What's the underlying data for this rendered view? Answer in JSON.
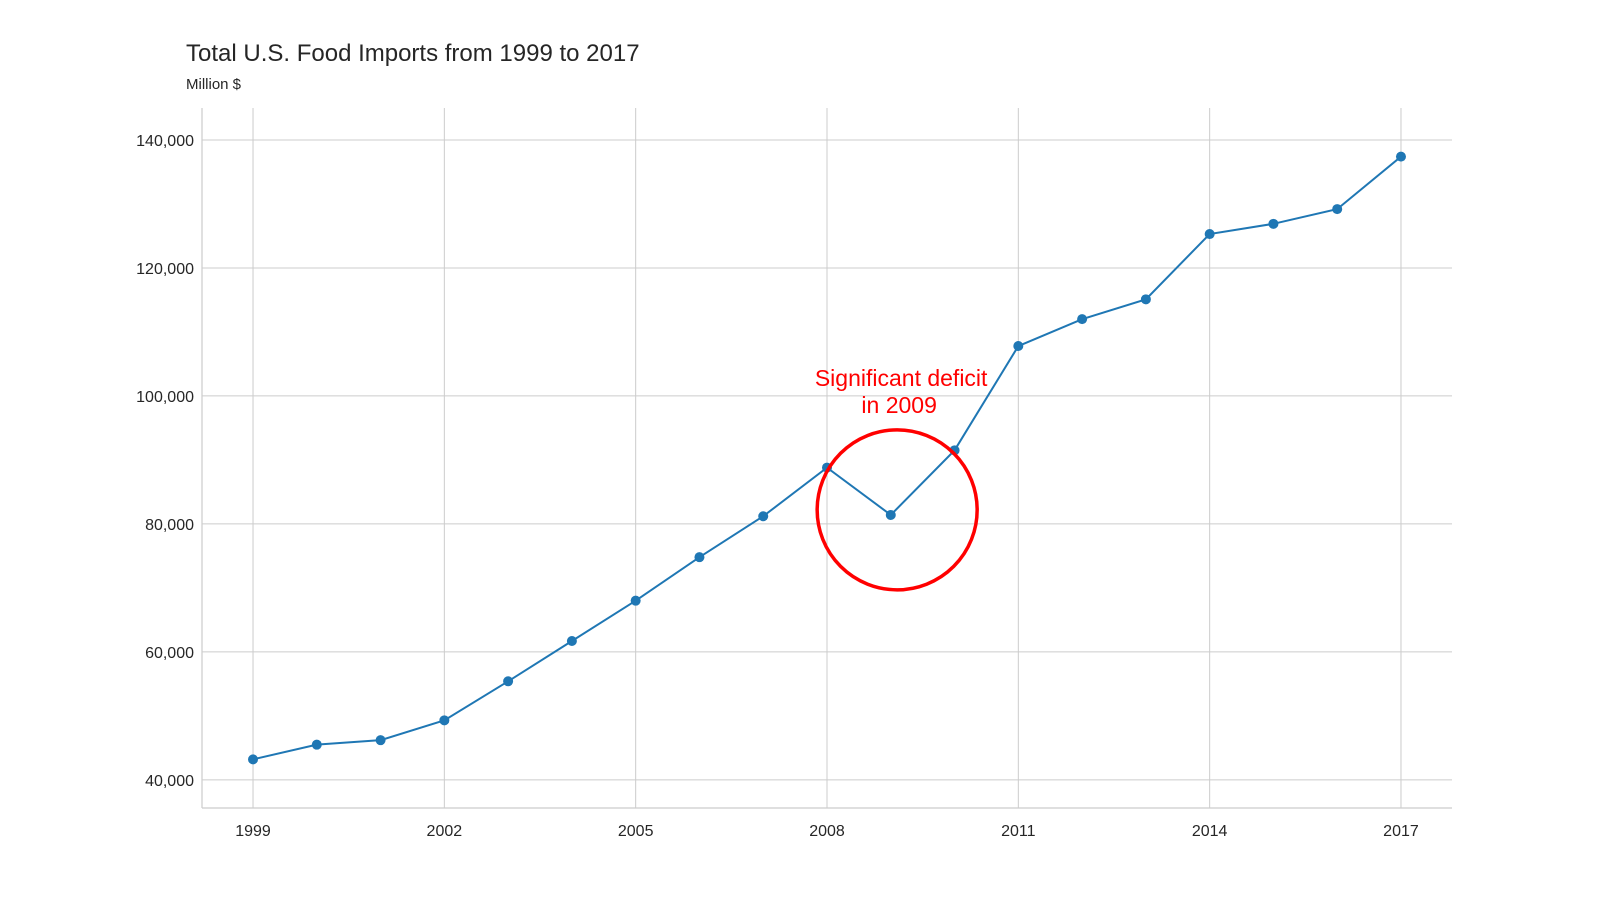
{
  "chart_data": {
    "type": "line",
    "title": "Total U.S. Food Imports from 1999 to 2017",
    "subtitle": "Million $",
    "xlabel": "",
    "ylabel": "",
    "x": [
      1999,
      2000,
      2001,
      2002,
      2003,
      2004,
      2005,
      2006,
      2007,
      2008,
      2009,
      2010,
      2011,
      2012,
      2013,
      2014,
      2015,
      2016,
      2017
    ],
    "series": [
      {
        "values": [
          43200,
          45500,
          46200,
          49300,
          55400,
          61700,
          68000,
          74800,
          81200,
          88800,
          81400,
          91500,
          107800,
          112000,
          115100,
          125300,
          126900,
          129200,
          137400
        ]
      }
    ],
    "xticks": [
      1999,
      2002,
      2005,
      2008,
      2011,
      2014,
      2017
    ],
    "xtick_labels": [
      "1999",
      "2002",
      "2005",
      "2008",
      "2011",
      "2014",
      "2017"
    ],
    "yticks": [
      40000,
      60000,
      80000,
      100000,
      120000,
      140000
    ],
    "ytick_labels": [
      "40,000",
      "60,000",
      "80,000",
      "100,000",
      "120,000",
      "140,000"
    ],
    "xlim": [
      1998.2,
      2017.8
    ],
    "ylim": [
      35600,
      145000
    ],
    "grid": true,
    "annotation": {
      "lines": [
        "Significant deficit",
        "in 2009"
      ],
      "x": 2009.1,
      "y": 82200
    },
    "colors": {
      "line": "#1f77b4",
      "marker": "#1f77b4",
      "annotation": "#ff0000",
      "grid": "#cccccc",
      "text": "#262626"
    }
  }
}
